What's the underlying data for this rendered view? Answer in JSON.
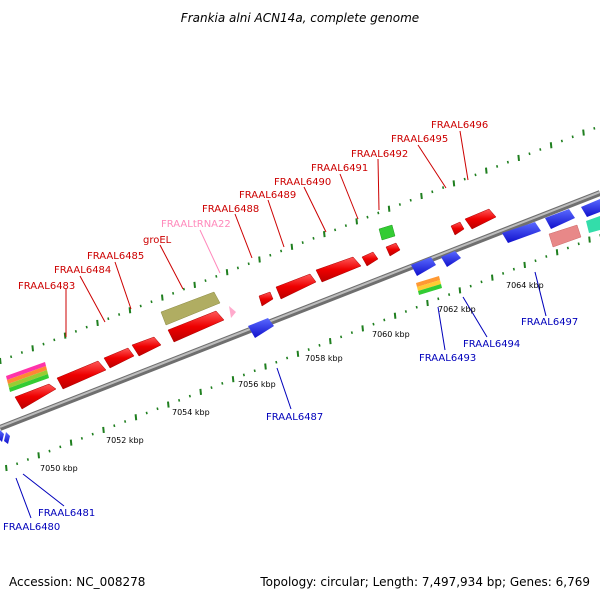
{
  "title": "Frankia alni ACN14a, complete genome",
  "accession": "Accession: NC_008278",
  "summary": "Topology: circular; Length: 7,497,934 bp; Genes: 6,769",
  "colors": {
    "forward_label": "#cc0000",
    "reverse_label": "#0000bb",
    "trna_label": "#ff88bb",
    "forward_gene": "#ff0000",
    "reverse_gene": "#1a1aee",
    "backbone": "#9a9a9a",
    "ticks": "#1f7f1f"
  },
  "kbp_labels": [
    "7050 kbp",
    "7052 kbp",
    "7054 kbp",
    "7056 kbp",
    "7058 kbp",
    "7060 kbp",
    "7062 kbp",
    "7064 kbp"
  ],
  "forward_genes": [
    {
      "label": "FRAAL6483",
      "color": "#cc0000"
    },
    {
      "label": "FRAAL6484",
      "color": "#cc0000"
    },
    {
      "label": "FRAAL6485",
      "color": "#cc0000"
    },
    {
      "label": "groEL",
      "color": "#cc0000"
    },
    {
      "label": "FRAALtRNA22",
      "color": "#ff88bb"
    },
    {
      "label": "FRAAL6488",
      "color": "#cc0000"
    },
    {
      "label": "FRAAL6489",
      "color": "#cc0000"
    },
    {
      "label": "FRAAL6490",
      "color": "#cc0000"
    },
    {
      "label": "FRAAL6491",
      "color": "#cc0000"
    },
    {
      "label": "FRAAL6492",
      "color": "#cc0000"
    },
    {
      "label": "FRAAL6495",
      "color": "#cc0000"
    },
    {
      "label": "FRAAL6496",
      "color": "#cc0000"
    }
  ],
  "reverse_genes": [
    {
      "label": "FRAAL6480"
    },
    {
      "label": "FRAAL6481"
    },
    {
      "label": "FRAAL6487"
    },
    {
      "label": "FRAAL6493"
    },
    {
      "label": "FRAAL6494"
    },
    {
      "label": "FRAAL6497"
    }
  ]
}
